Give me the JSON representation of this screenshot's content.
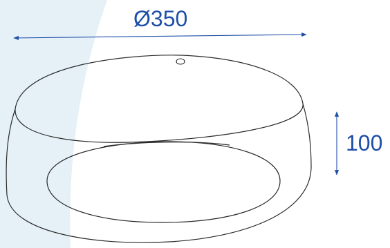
{
  "diagram": {
    "diameter_label": "Ø350",
    "height_label": "100",
    "colors": {
      "background_panel": "#e6f1f7",
      "line": "#2a2a2a",
      "dimension": "#1e4fa8"
    }
  }
}
